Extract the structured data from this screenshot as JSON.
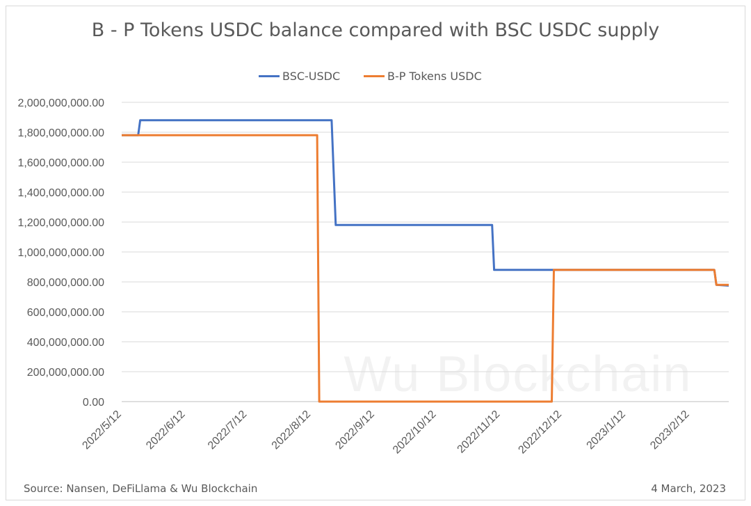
{
  "chart_data": {
    "type": "line",
    "title": "B - P Tokens USDC balance compared with BSC USDC supply",
    "xlabel": "",
    "ylabel": "",
    "ylim": [
      0,
      2000000000
    ],
    "y_ticks": [
      "0.00",
      "200,000,000.00",
      "400,000,000.00",
      "600,000,000.00",
      "800,000,000.00",
      "1,000,000,000.00",
      "1,200,000,000.00",
      "1,400,000,000.00",
      "1,600,000,000.00",
      "1,800,000,000.00",
      "2,000,000,000.00"
    ],
    "x_range": [
      "2022-05-12",
      "2023-03-03"
    ],
    "x_ticks": [
      {
        "label": "2022/5/12",
        "date": "2022-05-12"
      },
      {
        "label": "2022/6/12",
        "date": "2022-06-12"
      },
      {
        "label": "2022/7/12",
        "date": "2022-07-12"
      },
      {
        "label": "2022/8/12",
        "date": "2022-08-12"
      },
      {
        "label": "2022/9/12",
        "date": "2022-09-12"
      },
      {
        "label": "2022/10/12",
        "date": "2022-10-12"
      },
      {
        "label": "2022/11/12",
        "date": "2022-11-12"
      },
      {
        "label": "2022/12/12",
        "date": "2022-12-12"
      },
      {
        "label": "2023/1/12",
        "date": "2023-01-12"
      },
      {
        "label": "2023/2/12",
        "date": "2023-02-12"
      }
    ],
    "grid": true,
    "legend_position": "top",
    "series": [
      {
        "name": "BSC-USDC",
        "color": "#4472c4",
        "points": [
          [
            "2022-05-12",
            1780000000
          ],
          [
            "2022-05-20",
            1780000000
          ],
          [
            "2022-05-21",
            1880000000
          ],
          [
            "2022-08-22",
            1880000000
          ],
          [
            "2022-08-24",
            1180000000
          ],
          [
            "2022-11-08",
            1180000000
          ],
          [
            "2022-11-09",
            880000000
          ],
          [
            "2023-02-24",
            880000000
          ],
          [
            "2023-02-25",
            780000000
          ],
          [
            "2023-03-03",
            775000000
          ]
        ]
      },
      {
        "name": "B-P Tokens USDC",
        "color": "#ed7d31",
        "points": [
          [
            "2022-05-12",
            1780000000
          ],
          [
            "2022-08-15",
            1780000000
          ],
          [
            "2022-08-16",
            0
          ],
          [
            "2022-12-07",
            0
          ],
          [
            "2022-12-08",
            880000000
          ],
          [
            "2023-02-24",
            880000000
          ],
          [
            "2023-02-25",
            780000000
          ],
          [
            "2023-03-03",
            780000000
          ]
        ]
      }
    ],
    "watermark": "Wu Blockchain",
    "source": "Source: Nansen, DeFiLlama & Wu Blockchain",
    "date": "4 March, 2023"
  }
}
